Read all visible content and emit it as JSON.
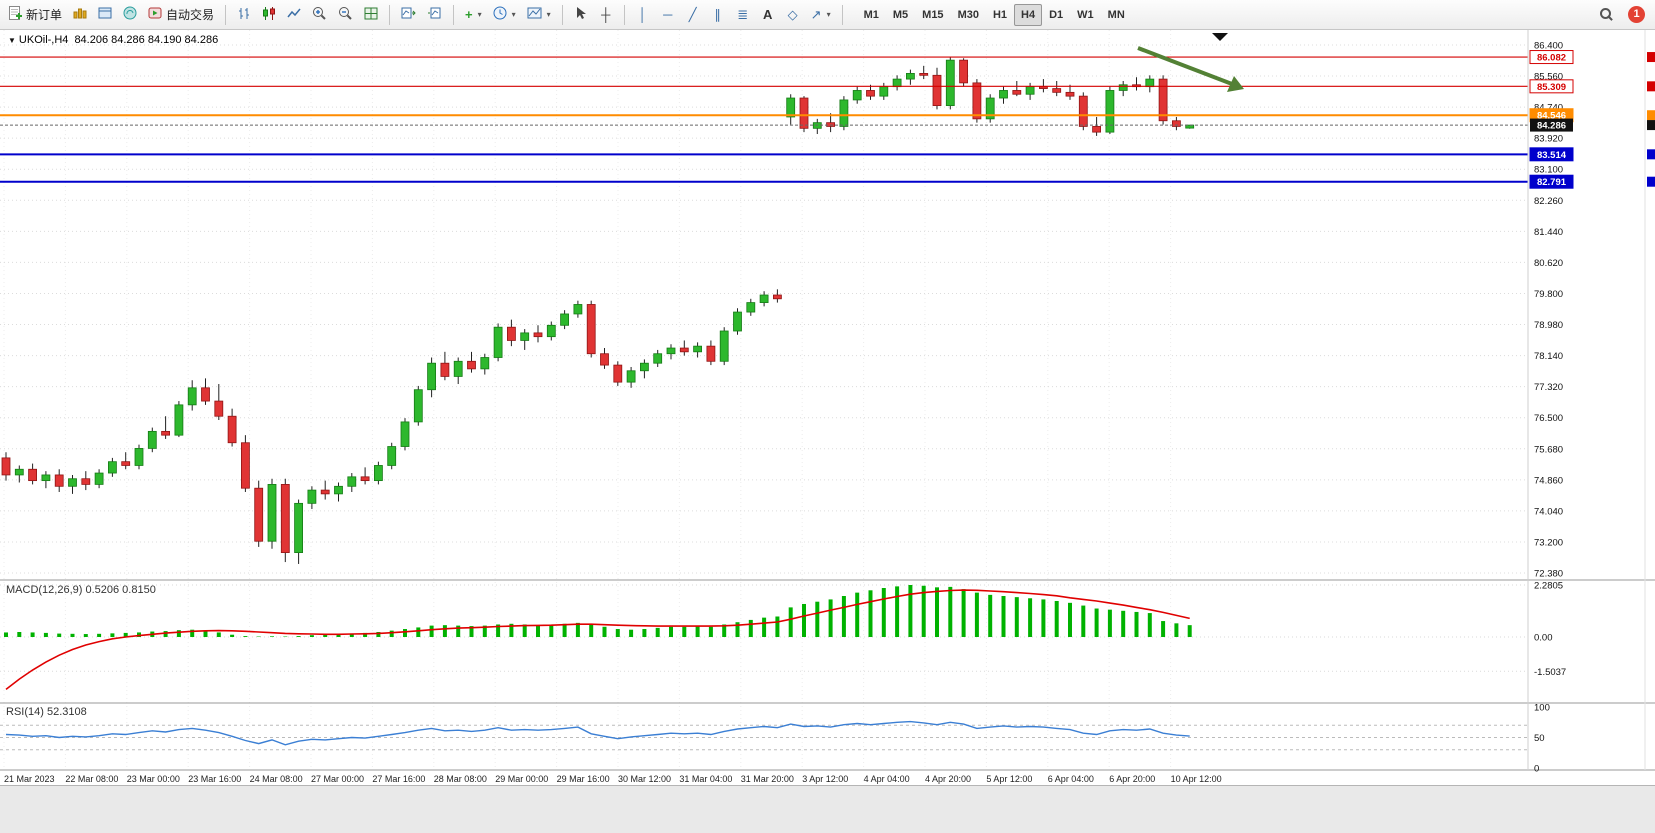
{
  "toolbar": {
    "new_order_label": "新订单",
    "auto_trading_label": "自动交易",
    "timeframes": [
      "M1",
      "M5",
      "M15",
      "M30",
      "H1",
      "H4",
      "D1",
      "W1",
      "MN"
    ],
    "active_timeframe": "H4",
    "notification_count": "1"
  },
  "chart": {
    "symbol": "UKOil-,H4",
    "ohlc": "84.206 84.286 84.190 84.286",
    "price_axis": [
      "86.400",
      "85.560",
      "84.740",
      "83.920",
      "83.100",
      "82.260",
      "81.440",
      "80.620",
      "79.800",
      "78.980",
      "78.140",
      "77.320",
      "76.500",
      "75.680",
      "74.860",
      "74.040",
      "73.200",
      "72.380"
    ],
    "time_axis": [
      "21 Mar 2023",
      "22 Mar 08:00",
      "23 Mar 00:00",
      "23 Mar 16:00",
      "24 Mar 08:00",
      "27 Mar 00:00",
      "27 Mar 16:00",
      "28 Mar 08:00",
      "29 Mar 00:00",
      "29 Mar 16:00",
      "30 Mar 12:00",
      "31 Mar 04:00",
      "31 Mar 20:00",
      "3 Apr 12:00",
      "4 Apr 04:00",
      "4 Apr 20:00",
      "5 Apr 12:00",
      "6 Apr 04:00",
      "6 Apr 20:00",
      "10 Apr 12:00"
    ],
    "price_lines": [
      {
        "label": "86.082",
        "price": 86.082,
        "color": "#d40000",
        "style": "outline",
        "width": 1.2
      },
      {
        "label": "85.309",
        "price": 85.309,
        "color": "#d40000",
        "style": "outline",
        "width": 1.2
      },
      {
        "label": "84.546",
        "price": 84.546,
        "color": "#ff8c00",
        "style": "filled",
        "width": 2
      },
      {
        "label": "83.514",
        "price": 83.514,
        "color": "#0000cc",
        "style": "filled",
        "width": 2
      },
      {
        "label": "82.791",
        "price": 82.791,
        "color": "#0000cc",
        "style": "filled",
        "width": 2
      }
    ],
    "current_price": {
      "label": "84.286",
      "price": 84.286,
      "color": "#111111"
    }
  },
  "macd": {
    "label": "MACD(12,26,9) 0.5206 0.8150",
    "axis_labels": [
      "2.2805",
      "0.00",
      "-1.5037"
    ]
  },
  "rsi": {
    "label": "RSI(14) 52.3108",
    "axis_labels": [
      "100",
      "50",
      "0"
    ],
    "levels": [
      70,
      50,
      30
    ]
  },
  "colors": {
    "up": "#2db82d",
    "up_border": "#157a15",
    "down": "#e03434",
    "down_border": "#8f1414",
    "wick": "#222222",
    "macd_hist": "#00b200",
    "macd_signal": "#e00000",
    "rsi_line": "#3b7fd4",
    "arrow_green": "#538135",
    "grid": "#dcdcdc"
  },
  "chart_data": {
    "type": "candlestick",
    "symbol": "UKOil-",
    "timeframe": "H4",
    "title": "UKOil-,H4 84.206 84.286 84.190 84.286",
    "price_range": [
      72.38,
      86.4
    ],
    "candles": [
      [
        75.5,
        75.65,
        74.9,
        75.05
      ],
      [
        75.05,
        75.3,
        74.85,
        75.2
      ],
      [
        75.2,
        75.35,
        74.8,
        74.9
      ],
      [
        74.9,
        75.15,
        74.7,
        75.05
      ],
      [
        75.05,
        75.2,
        74.6,
        74.75
      ],
      [
        74.75,
        75.05,
        74.55,
        74.95
      ],
      [
        74.95,
        75.15,
        74.65,
        74.8
      ],
      [
        74.8,
        75.2,
        74.7,
        75.1
      ],
      [
        75.1,
        75.5,
        75.0,
        75.4
      ],
      [
        75.4,
        75.65,
        75.2,
        75.3
      ],
      [
        75.3,
        75.85,
        75.2,
        75.75
      ],
      [
        75.75,
        76.3,
        75.65,
        76.2
      ],
      [
        76.2,
        76.6,
        76.0,
        76.1
      ],
      [
        76.1,
        77.0,
        76.05,
        76.9
      ],
      [
        76.9,
        77.55,
        76.75,
        77.35
      ],
      [
        77.35,
        77.6,
        76.9,
        77.0
      ],
      [
        77.0,
        77.45,
        76.5,
        76.6
      ],
      [
        76.6,
        76.8,
        75.8,
        75.9
      ],
      [
        75.9,
        76.1,
        74.6,
        74.7
      ],
      [
        74.7,
        74.9,
        73.15,
        73.3
      ],
      [
        73.3,
        74.95,
        73.1,
        74.8
      ],
      [
        74.8,
        74.95,
        72.75,
        73.0
      ],
      [
        73.0,
        74.4,
        72.7,
        74.3
      ],
      [
        74.3,
        74.75,
        74.15,
        74.65
      ],
      [
        74.65,
        74.9,
        74.4,
        74.55
      ],
      [
        74.55,
        74.85,
        74.35,
        74.75
      ],
      [
        74.75,
        75.1,
        74.6,
        75.0
      ],
      [
        75.0,
        75.25,
        74.8,
        74.9
      ],
      [
        74.9,
        75.4,
        74.8,
        75.3
      ],
      [
        75.3,
        75.9,
        75.2,
        75.8
      ],
      [
        75.8,
        76.55,
        75.7,
        76.45
      ],
      [
        76.45,
        77.4,
        76.35,
        77.3
      ],
      [
        77.3,
        78.15,
        77.1,
        78.0
      ],
      [
        78.0,
        78.3,
        77.55,
        77.65
      ],
      [
        77.65,
        78.15,
        77.45,
        78.05
      ],
      [
        78.05,
        78.3,
        77.75,
        77.85
      ],
      [
        77.85,
        78.25,
        77.7,
        78.15
      ],
      [
        78.15,
        79.05,
        78.05,
        78.95
      ],
      [
        78.95,
        79.15,
        78.45,
        78.6
      ],
      [
        78.6,
        78.9,
        78.35,
        78.8
      ],
      [
        78.8,
        79.0,
        78.55,
        78.7
      ],
      [
        78.7,
        79.1,
        78.6,
        79.0
      ],
      [
        79.0,
        79.4,
        78.9,
        79.3
      ],
      [
        79.3,
        79.65,
        79.2,
        79.55
      ],
      [
        79.55,
        79.65,
        78.15,
        78.25
      ],
      [
        78.25,
        78.4,
        77.85,
        77.95
      ],
      [
        77.95,
        78.05,
        77.4,
        77.5
      ],
      [
        77.5,
        77.9,
        77.35,
        77.8
      ],
      [
        77.8,
        78.1,
        77.6,
        78.0
      ],
      [
        78.0,
        78.35,
        77.9,
        78.25
      ],
      [
        78.25,
        78.5,
        78.1,
        78.4
      ],
      [
        78.4,
        78.6,
        78.2,
        78.3
      ],
      [
        78.3,
        78.55,
        78.15,
        78.45
      ],
      [
        78.45,
        78.6,
        77.95,
        78.05
      ],
      [
        78.05,
        78.95,
        77.95,
        78.85
      ],
      [
        78.85,
        79.45,
        78.75,
        79.35
      ],
      [
        79.35,
        79.7,
        79.25,
        79.6
      ],
      [
        79.6,
        79.9,
        79.5,
        79.8
      ],
      [
        79.8,
        79.95,
        79.6,
        79.7
      ],
      [
        84.5,
        85.1,
        84.3,
        85.0
      ],
      [
        85.0,
        85.05,
        84.1,
        84.2
      ],
      [
        84.2,
        84.45,
        84.05,
        84.35
      ],
      [
        84.35,
        84.6,
        84.1,
        84.25
      ],
      [
        84.25,
        85.05,
        84.15,
        84.95
      ],
      [
        84.95,
        85.3,
        84.85,
        85.2
      ],
      [
        85.2,
        85.35,
        84.95,
        85.05
      ],
      [
        85.05,
        85.4,
        84.95,
        85.3
      ],
      [
        85.3,
        85.6,
        85.2,
        85.5
      ],
      [
        85.5,
        85.75,
        85.35,
        85.65
      ],
      [
        85.65,
        85.85,
        85.5,
        85.6
      ],
      [
        85.6,
        85.8,
        84.7,
        84.8
      ],
      [
        84.8,
        86.08,
        84.7,
        86.0
      ],
      [
        86.0,
        86.05,
        85.3,
        85.4
      ],
      [
        85.4,
        85.5,
        84.35,
        84.45
      ],
      [
        84.45,
        85.1,
        84.35,
        85.0
      ],
      [
        85.0,
        85.3,
        84.85,
        85.2
      ],
      [
        85.2,
        85.45,
        85.05,
        85.1
      ],
      [
        85.1,
        85.4,
        84.95,
        85.3
      ],
      [
        85.3,
        85.5,
        85.15,
        85.25
      ],
      [
        85.25,
        85.45,
        85.05,
        85.15
      ],
      [
        85.15,
        85.35,
        84.95,
        85.05
      ],
      [
        85.05,
        85.15,
        84.15,
        84.25
      ],
      [
        84.25,
        84.5,
        84.0,
        84.1
      ],
      [
        84.1,
        85.3,
        84.05,
        85.2
      ],
      [
        85.2,
        85.45,
        85.05,
        85.35
      ],
      [
        85.35,
        85.55,
        85.2,
        85.3
      ],
      [
        85.3,
        85.6,
        85.15,
        85.5
      ],
      [
        85.5,
        85.6,
        84.3,
        84.4
      ],
      [
        84.4,
        84.5,
        84.15,
        84.25
      ],
      [
        84.206,
        84.286,
        84.19,
        84.286
      ]
    ],
    "macd": {
      "params": "12,26,9",
      "histogram": [
        0.2,
        0.22,
        0.2,
        0.18,
        0.15,
        0.14,
        0.13,
        0.14,
        0.16,
        0.18,
        0.2,
        0.24,
        0.26,
        0.3,
        0.32,
        0.28,
        0.2,
        0.1,
        0.04,
        0.02,
        0.03,
        0.02,
        0.04,
        0.08,
        0.1,
        0.12,
        0.15,
        0.18,
        0.22,
        0.28,
        0.35,
        0.42,
        0.5,
        0.52,
        0.5,
        0.48,
        0.5,
        0.55,
        0.58,
        0.55,
        0.52,
        0.55,
        0.58,
        0.62,
        0.55,
        0.45,
        0.35,
        0.32,
        0.35,
        0.4,
        0.45,
        0.45,
        0.48,
        0.45,
        0.55,
        0.65,
        0.75,
        0.85,
        0.9,
        1.3,
        1.45,
        1.55,
        1.65,
        1.8,
        1.95,
        2.05,
        2.15,
        2.22,
        2.28,
        2.25,
        2.18,
        2.2,
        2.1,
        1.95,
        1.85,
        1.8,
        1.75,
        1.7,
        1.65,
        1.58,
        1.5,
        1.38,
        1.25,
        1.2,
        1.15,
        1.1,
        1.05,
        0.7,
        0.6,
        0.52
      ],
      "signal": [
        -2.3,
        -1.85,
        -1.45,
        -1.1,
        -0.8,
        -0.55,
        -0.35,
        -0.2,
        -0.08,
        0.0,
        0.06,
        0.12,
        0.17,
        0.21,
        0.25,
        0.27,
        0.28,
        0.27,
        0.25,
        0.22,
        0.19,
        0.16,
        0.14,
        0.13,
        0.12,
        0.12,
        0.13,
        0.14,
        0.16,
        0.19,
        0.23,
        0.27,
        0.32,
        0.36,
        0.39,
        0.41,
        0.43,
        0.46,
        0.48,
        0.5,
        0.51,
        0.52,
        0.54,
        0.56,
        0.56,
        0.54,
        0.52,
        0.5,
        0.49,
        0.48,
        0.48,
        0.48,
        0.48,
        0.48,
        0.49,
        0.52,
        0.56,
        0.61,
        0.66,
        0.78,
        0.92,
        1.05,
        1.18,
        1.3,
        1.43,
        1.55,
        1.67,
        1.78,
        1.88,
        1.95,
        2.0,
        2.04,
        2.06,
        2.05,
        2.02,
        1.99,
        1.95,
        1.91,
        1.86,
        1.81,
        1.72,
        1.65,
        1.58,
        1.49,
        1.4,
        1.3,
        1.2,
        1.08,
        0.95,
        0.815
      ]
    },
    "rsi": {
      "period": 14,
      "values": [
        55,
        54,
        52,
        53,
        50,
        52,
        51,
        53,
        56,
        55,
        58,
        61,
        59,
        63,
        65,
        62,
        58,
        52,
        45,
        40,
        46,
        38,
        44,
        47,
        46,
        48,
        50,
        49,
        52,
        55,
        58,
        62,
        65,
        61,
        62,
        60,
        62,
        66,
        62,
        63,
        62,
        63,
        65,
        67,
        56,
        52,
        48,
        51,
        53,
        55,
        57,
        56,
        57,
        55,
        60,
        64,
        66,
        68,
        66,
        72,
        68,
        69,
        67,
        71,
        73,
        71,
        73,
        75,
        76,
        74,
        71,
        75,
        72,
        65,
        67,
        69,
        67,
        68,
        67,
        65,
        63,
        57,
        55,
        61,
        63,
        62,
        64,
        57,
        54,
        52.3
      ]
    }
  }
}
